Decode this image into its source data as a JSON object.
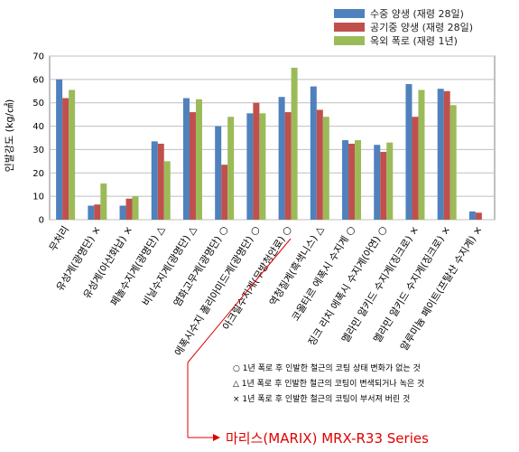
{
  "chart_data": {
    "type": "bar",
    "ylabel": "인발강도 (kg/㎠)",
    "ylim": [
      0,
      70
    ],
    "yticks": [
      0,
      10,
      20,
      30,
      40,
      50,
      60,
      70
    ],
    "grid": true,
    "legend_position": "top-right",
    "categories": [
      "무처리",
      "유성계(광명단) ×",
      "유성계(아산화납) ×",
      "페놀수지계(광명단) △",
      "비닐수지계(광명단) △",
      "염화고무계(광명단) ○",
      "에폭시수지 폴리아미드계(광명단) ○",
      "아크릴수지계(무방청안료) ○",
      "역청질계(흑색니스) △",
      "코올타르 에폭시 수지계 ○",
      "징크 리치 에폭시 수지계(아연) ○",
      "멜라민 알키드 수지계(징크로) ×",
      "멜라민 알키드 수지계(징크로) ×",
      "알루미늄 페이트(프탈산 수지계) ×"
    ],
    "series": [
      {
        "name": "수중 양생 (재령 28일)",
        "color": "#4f81bd",
        "values": [
          60,
          6,
          6,
          33.5,
          52,
          40,
          45.5,
          52.5,
          57,
          34,
          32,
          58,
          56,
          3.5
        ]
      },
      {
        "name": "공기중 양생 (재령 28일)",
        "color": "#c0504d",
        "values": [
          52,
          6.5,
          9,
          32.5,
          46,
          23.5,
          50,
          46,
          47,
          32.5,
          29,
          44,
          55,
          3
        ]
      },
      {
        "name": "옥외 폭로 (재령 1년)",
        "color": "#9bbb59",
        "values": [
          55.5,
          15.5,
          10,
          25,
          51.5,
          44,
          45.5,
          65,
          44,
          34,
          33,
          55.5,
          49,
          null
        ]
      }
    ]
  },
  "notes": [
    "○ 1년 폭로 후 인발한 철근의 코팅 상태 변화가 없는 것",
    "△ 1년 폭로 후 인발한 철근의 코팅이 변색되거나 녹은 것",
    "× 1년 폭로 후 인발한 철근의 코팅이 부서져 버린 것"
  ],
  "callout": "마리스(MARIX) MRX-R33 Series",
  "colors": {
    "callout": "#e00000",
    "grid": "#bfbfbf"
  }
}
